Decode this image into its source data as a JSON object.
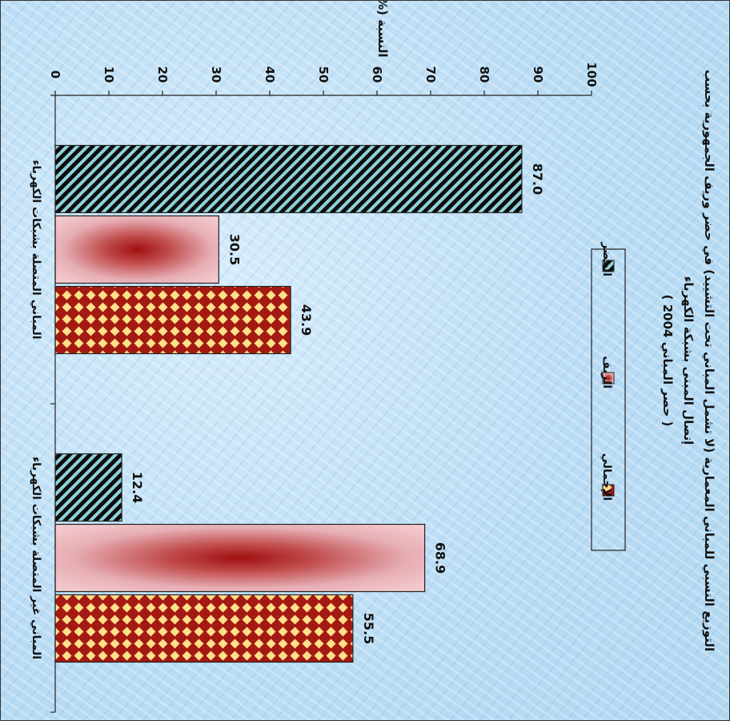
{
  "chart_data": {
    "type": "bar",
    "orientation": "rotated-90",
    "title_lines": [
      "التوزيع النسبي للمباني المعمارية (لا تشمل المباني تحت التشييد) في حضر وريف الجمهورية بحسب",
      "إتصال المبنى بشبكة الكهرباء",
      "( حصر المباني 2004 )"
    ],
    "ylabel": "النسبة (%)",
    "ylim": [
      0,
      100
    ],
    "yticks": [
      0,
      10,
      20,
      30,
      40,
      50,
      60,
      70,
      80,
      90,
      100
    ],
    "categories": [
      "المباني المتصلة بشبكات الكهرباء",
      "المباني غير المتصلة بشبكات الكهرباء"
    ],
    "series": [
      {
        "name": "الحضر",
        "values": [
          87.0,
          12.4
        ],
        "value_labels": [
          "87.0",
          "12.4"
        ],
        "pattern": "diagonal-stripes"
      },
      {
        "name": "الريف",
        "values": [
          30.5,
          68.9
        ],
        "value_labels": [
          "30.5",
          "68.9"
        ],
        "pattern": "pink-radial"
      },
      {
        "name": "الإجمالي",
        "values": [
          43.9,
          55.5
        ],
        "value_labels": [
          "43.9",
          "55.5"
        ],
        "pattern": "diamond-checker"
      }
    ],
    "legend_position": "center"
  }
}
